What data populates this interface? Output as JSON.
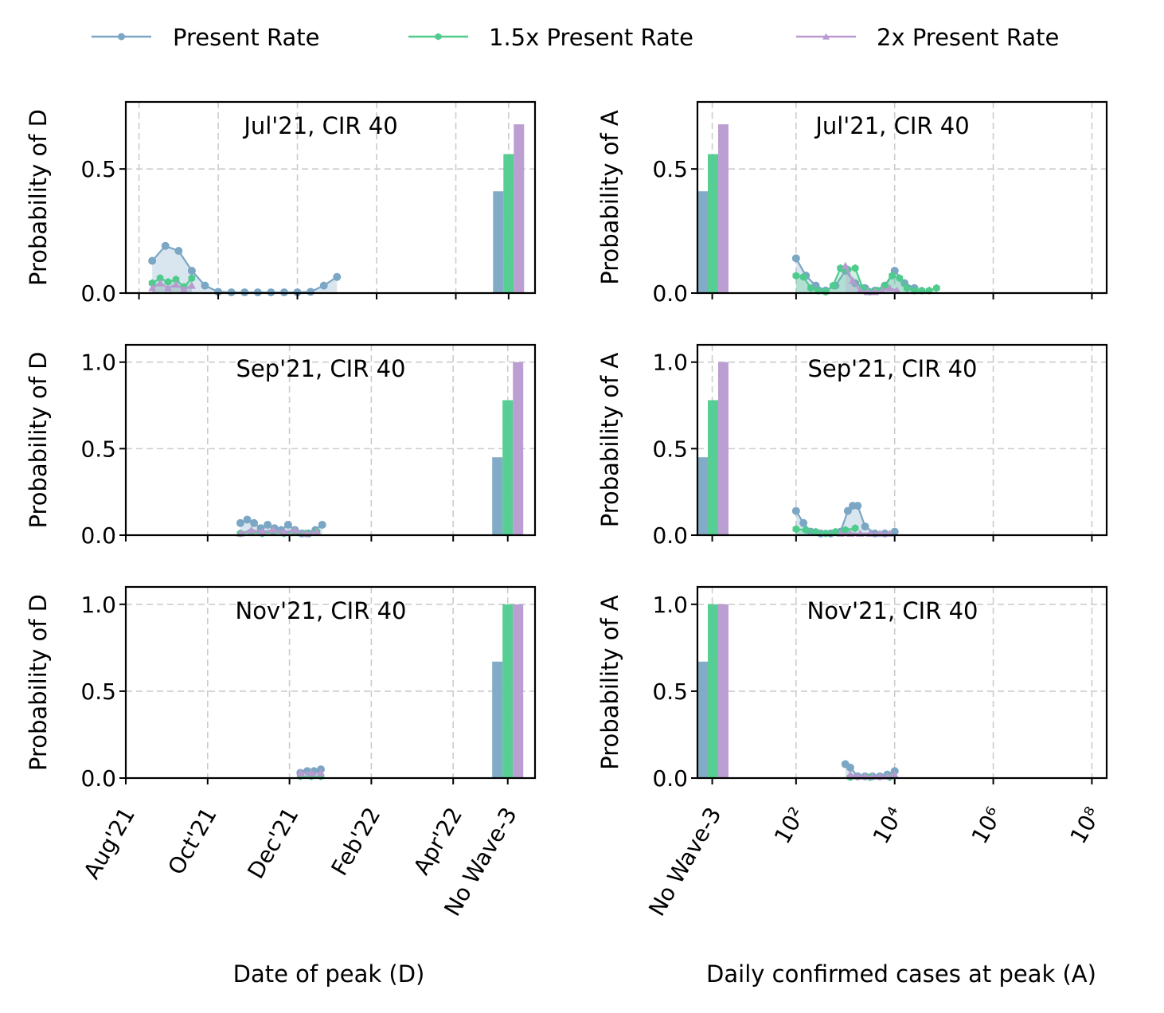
{
  "legend": {
    "items": [
      {
        "label": "Present Rate",
        "color": "#7ba6c4",
        "marker": "circle"
      },
      {
        "label": "1.5x Present Rate",
        "color": "#4ecb8d",
        "marker": "hexagon"
      },
      {
        "label": "2x Present Rate",
        "color": "#b89ad0",
        "marker": "triangle"
      }
    ]
  },
  "x_axis_labels": {
    "left": "Date of peak (D)",
    "right": "Daily confirmed cases at peak (A)"
  },
  "chart_data": [
    {
      "type": "line",
      "title": "Jul'21, CIR 40",
      "ylabel": "Probability of D",
      "ylim": [
        0,
        0.77
      ],
      "yticks": [
        0.0,
        0.5
      ],
      "xlim": [
        -0.5,
        15.0
      ],
      "xticks": [
        {
          "v": 0,
          "label": "Aug'21"
        },
        {
          "v": 3,
          "label": "Oct'21"
        },
        {
          "v": 6,
          "label": "Dec'21"
        },
        {
          "v": 9,
          "label": "Feb'22"
        },
        {
          "v": 12,
          "label": "Apr'22"
        },
        {
          "v": 14.0,
          "label": "No Wave-3"
        }
      ],
      "grid": true,
      "series": [
        {
          "name": "Present Rate",
          "x": [
            0.5,
            1.0,
            1.5,
            2.0,
            2.5,
            3.0,
            3.5,
            4.0,
            4.5,
            5.0,
            5.5,
            6.0,
            6.5,
            7.0,
            7.5
          ],
          "y": [
            0.13,
            0.19,
            0.17,
            0.09,
            0.03,
            0.005,
            0.003,
            0.003,
            0.003,
            0.003,
            0.003,
            0.003,
            0.005,
            0.03,
            0.065
          ]
        },
        {
          "name": "1.5x Present Rate",
          "x": [
            0.5,
            0.8,
            1.1,
            1.4,
            1.7,
            2.0
          ],
          "y": [
            0.04,
            0.06,
            0.045,
            0.055,
            0.025,
            0.06
          ]
        },
        {
          "name": "2x Present Rate",
          "x": [
            0.5,
            0.8,
            1.1,
            1.4,
            1.7,
            2.0
          ],
          "y": [
            0.02,
            0.04,
            0.02,
            0.035,
            0.015,
            0.03
          ]
        }
      ],
      "no_wave_bars": [
        0.41,
        0.56,
        0.68
      ]
    },
    {
      "type": "line",
      "title": "Jul'21, CIR 40",
      "ylabel": "Probability of A",
      "ylim": [
        0,
        0.77
      ],
      "yticks": [
        0.0,
        0.5
      ],
      "xlim": [
        -0.3,
        8.0
      ],
      "xticks": [
        {
          "v": 0,
          "label": "No Wave-3"
        },
        {
          "v": 1.7,
          "label": "10²"
        },
        {
          "v": 3.7,
          "label": "10⁴"
        },
        {
          "v": 5.7,
          "label": "10⁶"
        },
        {
          "v": 7.7,
          "label": "10⁸"
        }
      ],
      "grid": true,
      "series": [
        {
          "name": "Present Rate",
          "x": [
            1.7,
            1.9,
            2.1,
            2.3,
            2.5,
            2.7,
            2.9,
            3.1,
            3.3,
            3.5,
            3.7,
            3.9,
            4.1
          ],
          "y": [
            0.14,
            0.07,
            0.03,
            0.01,
            0.03,
            0.09,
            0.04,
            0.02,
            0.01,
            0.03,
            0.09,
            0.04,
            0.02
          ]
        },
        {
          "name": "1.5x Present Rate",
          "x": [
            1.7,
            1.85,
            2.0,
            2.15,
            2.3,
            2.45,
            2.6,
            2.75,
            2.9,
            3.05,
            3.2,
            3.35,
            3.5,
            3.65,
            3.8,
            3.95,
            4.1,
            4.25,
            4.4,
            4.55
          ],
          "y": [
            0.07,
            0.065,
            0.02,
            0.01,
            0.005,
            0.03,
            0.1,
            0.095,
            0.1,
            0.02,
            0.005,
            0.01,
            0.03,
            0.07,
            0.06,
            0.02,
            0.01,
            0.01,
            0.01,
            0.02
          ]
        },
        {
          "name": "2x Present Rate",
          "x": [
            2.7,
            2.85,
            3.0,
            3.15,
            3.3,
            3.45,
            3.6,
            3.75
          ],
          "y": [
            0.11,
            0.05,
            0.01,
            0.005,
            0.005,
            0.01,
            0.02,
            0.01
          ]
        }
      ],
      "no_wave_bars": [
        0.41,
        0.56,
        0.68
      ]
    },
    {
      "type": "line",
      "title": "Sep'21, CIR 40",
      "ylabel": "Probability of D",
      "ylim": [
        0,
        1.1
      ],
      "yticks": [
        0.0,
        0.5,
        1.0
      ],
      "xlim": [
        0.0,
        15.0
      ],
      "xticks": [
        {
          "v": 0,
          "label": "Aug'21"
        },
        {
          "v": 3,
          "label": "Oct'21"
        },
        {
          "v": 6,
          "label": "Dec'21"
        },
        {
          "v": 9,
          "label": "Feb'22"
        },
        {
          "v": 12,
          "label": "Apr'22"
        },
        {
          "v": 14.0,
          "label": "No Wave-3"
        }
      ],
      "grid": true,
      "series": [
        {
          "name": "Present Rate",
          "x": [
            4.2,
            4.45,
            4.7,
            4.95,
            5.2,
            5.45,
            5.7,
            5.95,
            6.2,
            6.45,
            6.7,
            6.95,
            7.2
          ],
          "y": [
            0.07,
            0.09,
            0.07,
            0.04,
            0.06,
            0.04,
            0.03,
            0.06,
            0.03,
            0.01,
            0.01,
            0.03,
            0.06
          ]
        },
        {
          "name": "1.5x Present Rate",
          "x": [
            4.2,
            4.6,
            5.0,
            5.4,
            5.8,
            6.2,
            6.6,
            7.0
          ],
          "y": [
            0.01,
            0.02,
            0.01,
            0.02,
            0.01,
            0.02,
            0.01,
            0.02
          ]
        },
        {
          "name": "2x Present Rate",
          "x": [
            4.2,
            4.6,
            5.0,
            5.4,
            5.8,
            6.2,
            6.6,
            7.0
          ],
          "y": [
            0.01,
            0.03,
            0.02,
            0.03,
            0.02,
            0.03,
            0.01,
            0.02
          ]
        }
      ],
      "no_wave_bars": [
        0.45,
        0.78,
        1.0
      ]
    },
    {
      "type": "line",
      "title": "Sep'21, CIR 40",
      "ylabel": "Probability of A",
      "ylim": [
        0,
        1.1
      ],
      "yticks": [
        0.0,
        0.5,
        1.0
      ],
      "xlim": [
        -0.3,
        8.0
      ],
      "xticks": [
        {
          "v": 0,
          "label": "No Wave-3"
        },
        {
          "v": 1.7,
          "label": "10²"
        },
        {
          "v": 3.7,
          "label": "10⁴"
        },
        {
          "v": 5.7,
          "label": "10⁶"
        },
        {
          "v": 7.7,
          "label": "10⁸"
        }
      ],
      "grid": true,
      "series": [
        {
          "name": "Present Rate",
          "x": [
            1.7,
            1.85,
            2.0,
            2.2,
            2.4,
            2.6,
            2.75,
            2.85,
            2.95,
            3.1,
            3.3,
            3.5,
            3.7
          ],
          "y": [
            0.14,
            0.07,
            0.02,
            0.01,
            0.01,
            0.02,
            0.14,
            0.17,
            0.17,
            0.05,
            0.01,
            0.01,
            0.02
          ]
        },
        {
          "name": "1.5x Present Rate",
          "x": [
            1.7,
            1.9,
            2.1,
            2.3,
            2.5,
            2.7,
            2.9
          ],
          "y": [
            0.035,
            0.03,
            0.02,
            0.01,
            0.02,
            0.03,
            0.04
          ]
        },
        {
          "name": "2x Present Rate",
          "x": [
            2.6,
            2.8,
            3.0,
            3.2,
            3.4,
            3.6
          ],
          "y": [
            0.01,
            0.01,
            0.01,
            0.01,
            0.01,
            0.01
          ]
        }
      ],
      "no_wave_bars": [
        0.45,
        0.78,
        1.0
      ]
    },
    {
      "type": "line",
      "title": "Nov'21, CIR 40",
      "ylabel": "Probability of D",
      "ylim": [
        0,
        1.1
      ],
      "yticks": [
        0.0,
        0.5,
        1.0
      ],
      "xlim": [
        0.0,
        15.0
      ],
      "xticks": [
        {
          "v": 0,
          "label": "Aug'21"
        },
        {
          "v": 3,
          "label": "Oct'21"
        },
        {
          "v": 6,
          "label": "Dec'21"
        },
        {
          "v": 9,
          "label": "Feb'22"
        },
        {
          "v": 12,
          "label": "Apr'22"
        },
        {
          "v": 14.0,
          "label": "No Wave-3"
        }
      ],
      "grid": true,
      "series": [
        {
          "name": "Present Rate",
          "x": [
            6.4,
            6.65,
            6.9,
            7.15
          ],
          "y": [
            0.03,
            0.04,
            0.04,
            0.05
          ]
        },
        {
          "name": "1.5x Present Rate",
          "x": [
            6.4,
            6.8,
            7.15
          ],
          "y": [
            0.01,
            0.01,
            0.01
          ]
        },
        {
          "name": "2x Present Rate",
          "x": [
            6.4,
            6.8,
            7.15
          ],
          "y": [
            0.03,
            0.03,
            0.03
          ]
        }
      ],
      "no_wave_bars": [
        0.67,
        1.0,
        1.0
      ]
    },
    {
      "type": "line",
      "title": "Nov'21, CIR 40",
      "ylabel": "Probability of A",
      "ylim": [
        0,
        1.1
      ],
      "yticks": [
        0.0,
        0.5,
        1.0
      ],
      "xlim": [
        -0.3,
        8.0
      ],
      "xticks": [
        {
          "v": 0,
          "label": "No Wave-3"
        },
        {
          "v": 1.7,
          "label": "10²"
        },
        {
          "v": 3.7,
          "label": "10⁴"
        },
        {
          "v": 5.7,
          "label": "10⁶"
        },
        {
          "v": 7.7,
          "label": "10⁸"
        }
      ],
      "grid": true,
      "series": [
        {
          "name": "Present Rate",
          "x": [
            2.7,
            2.8,
            2.95,
            3.1,
            3.25,
            3.4,
            3.55,
            3.7
          ],
          "y": [
            0.08,
            0.06,
            0.01,
            0.01,
            0.01,
            0.01,
            0.02,
            0.04
          ]
        },
        {
          "name": "1.5x Present Rate",
          "x": [
            2.8,
            3.2,
            3.6
          ],
          "y": [
            0.005,
            0.005,
            0.005
          ]
        },
        {
          "name": "2x Present Rate",
          "x": [
            2.8,
            2.95,
            3.1,
            3.25,
            3.4,
            3.55,
            3.7
          ],
          "y": [
            0.02,
            0.01,
            0.01,
            0.01,
            0.01,
            0.01,
            0.02
          ]
        }
      ],
      "no_wave_bars": [
        0.67,
        1.0,
        1.0
      ]
    }
  ]
}
